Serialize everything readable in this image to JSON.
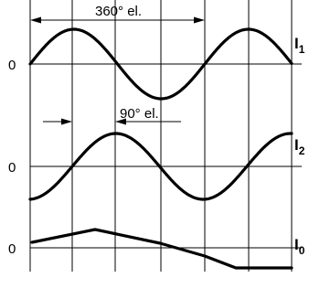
{
  "dimensions": {
    "period_label": "360° el.",
    "phase_shift_label": "90° el."
  },
  "signals": [
    {
      "id": "I1",
      "name": "I",
      "subscript": "1",
      "zero_label": "0",
      "waveform": "sine"
    },
    {
      "id": "I2",
      "name": "I",
      "subscript": "2",
      "zero_label": "0",
      "waveform": "sine shifted 90° el."
    },
    {
      "id": "I0",
      "name": "I",
      "subscript": "0",
      "zero_label": "0",
      "waveform": "reference pulse"
    }
  ]
}
